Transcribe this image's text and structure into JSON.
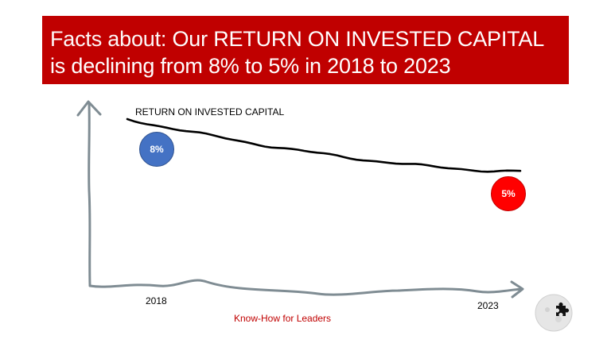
{
  "banner": {
    "prefix": "Facts about: ",
    "headline": "Our RETURN ON INVESTED CAPITAL is declining from 8% to 5% in 2018 to 2023"
  },
  "chart_data": {
    "type": "line",
    "title": "RETURN ON INVESTED CAPITAL",
    "series": [
      {
        "name": "RETURN ON INVESTED CAPITAL",
        "x": [
          2018,
          2023
        ],
        "values": [
          8,
          5
        ]
      }
    ],
    "start_label": "8%",
    "end_label": "5%",
    "x_tick_labels": [
      "2018",
      "2023"
    ],
    "xlabel": "",
    "ylabel": "",
    "colors": {
      "line": "#000000",
      "axis": "#7f8c93",
      "start_badge": "#4472c4",
      "end_badge": "#ff0000"
    }
  },
  "footer": {
    "credit": "Know-How for Leaders",
    "logo_icon": "puzzle-piece-icon"
  }
}
